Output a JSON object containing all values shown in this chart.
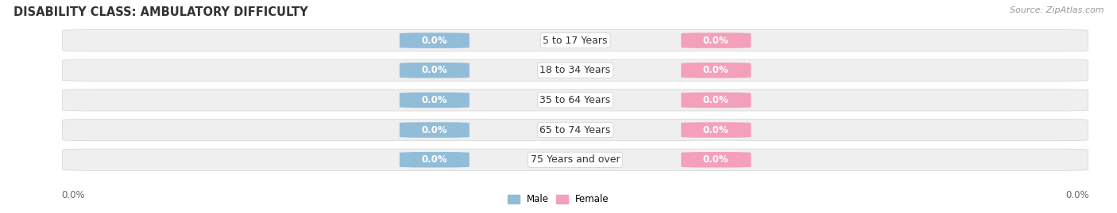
{
  "title": "DISABILITY CLASS: AMBULATORY DIFFICULTY",
  "source": "Source: ZipAtlas.com",
  "categories": [
    "5 to 17 Years",
    "18 to 34 Years",
    "35 to 64 Years",
    "65 to 74 Years",
    "75 Years and over"
  ],
  "male_values": [
    0.0,
    0.0,
    0.0,
    0.0,
    0.0
  ],
  "female_values": [
    0.0,
    0.0,
    0.0,
    0.0,
    0.0
  ],
  "male_color": "#92bdd8",
  "female_color": "#f4a0bb",
  "bar_bg_color": "#efefef",
  "bar_border_color": "#d8d8d8",
  "fig_bg_color": "#ffffff",
  "title_fontsize": 10.5,
  "source_fontsize": 8,
  "label_fontsize": 8.5,
  "category_fontsize": 9,
  "axis_label": "0.0%",
  "male_legend_color": "#92bdd8",
  "female_legend_color": "#f4a0bb",
  "legend_fontsize": 8.5
}
